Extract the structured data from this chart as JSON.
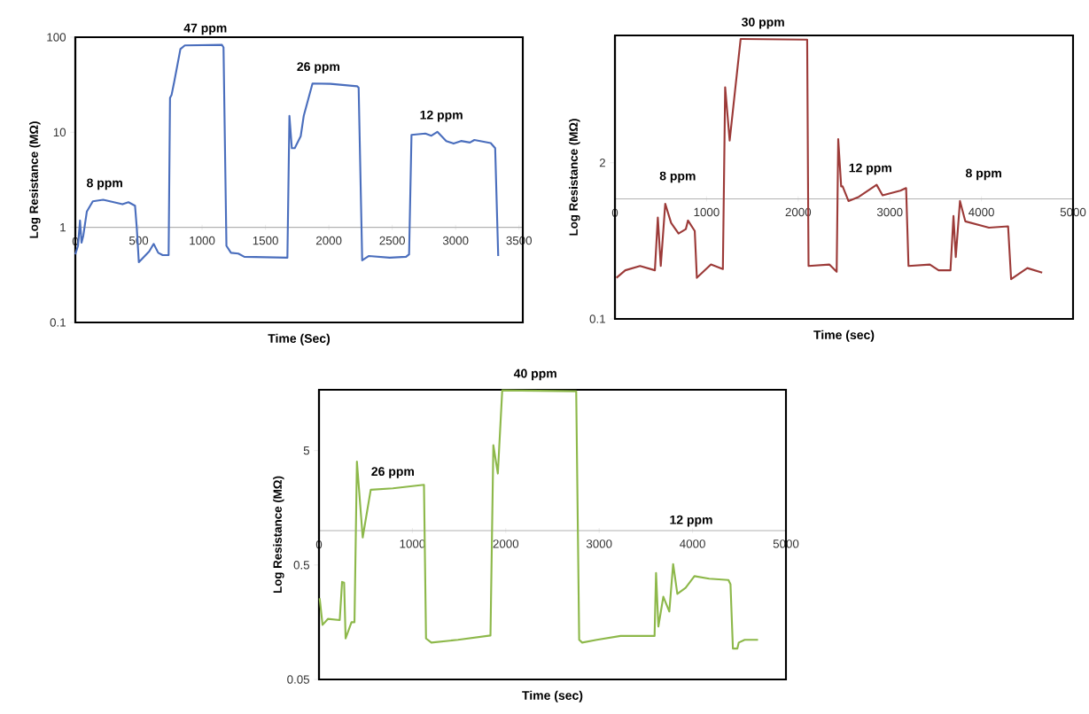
{
  "chart_data": [
    {
      "type": "line",
      "xlabel": "Time (Sec)",
      "ylabel": "Log Resistance (MΩ)",
      "log": "y",
      "color": "#4a6ebd",
      "xlim": [
        0,
        3530
      ],
      "ylim": [
        0.1,
        100
      ],
      "xticks": [
        0,
        500,
        1000,
        1500,
        2000,
        2500,
        3000,
        3500
      ],
      "yticks": [
        0.1,
        1,
        10,
        100
      ],
      "x": [
        0,
        21,
        37,
        49,
        63,
        91,
        138,
        220,
        372,
        419,
        471,
        485,
        501,
        548,
        583,
        618,
        654,
        689,
        736,
        747,
        759,
        782,
        829,
        864,
        1157,
        1169,
        1192,
        1228,
        1286,
        1333,
        1673,
        1689,
        1708,
        1731,
        1778,
        1802,
        1871,
        2012,
        2223,
        2235,
        2263,
        2316,
        2480,
        2609,
        2633,
        2652,
        2761,
        2809,
        2856,
        2926,
        2984,
        3043,
        3113,
        3148,
        3277,
        3312,
        3336
      ],
      "values": [
        0.52,
        0.64,
        1.18,
        0.69,
        0.82,
        1.47,
        1.88,
        1.95,
        1.75,
        1.84,
        1.69,
        0.98,
        0.43,
        0.5,
        0.56,
        0.67,
        0.54,
        0.51,
        0.51,
        23,
        24.6,
        35,
        75,
        82,
        83,
        78,
        0.64,
        0.54,
        0.53,
        0.49,
        0.48,
        14.9,
        6.8,
        6.8,
        9.1,
        14.9,
        32.6,
        32.3,
        30.5,
        29.4,
        0.45,
        0.5,
        0.48,
        0.49,
        0.52,
        9.4,
        9.7,
        9.2,
        10.1,
        8.1,
        7.6,
        8.1,
        7.8,
        8.3,
        7.7,
        6.8,
        0.5
      ],
      "annotations": [
        {
          "text": "8 ppm",
          "x": 232,
          "y": 1.95
        },
        {
          "text": "47 ppm",
          "x": 1026,
          "y": 83
        },
        {
          "text": "26 ppm",
          "x": 1918,
          "y": 32.6
        },
        {
          "text": "12 ppm",
          "x": 2888,
          "y": 10.1
        }
      ]
    },
    {
      "type": "line",
      "xlabel": "Time (sec)",
      "ylabel": "Log Resistance (MΩ)",
      "log": "y",
      "color": "#9c3a38",
      "xlim": [
        0,
        5000
      ],
      "ylim": [
        0.1,
        23
      ],
      "xticks": [
        0,
        1000,
        2000,
        3000,
        4000,
        5000
      ],
      "yticks": [
        0.1,
        2
      ],
      "x": [
        16,
        113,
        274,
        436,
        468,
        500,
        549,
        613,
        694,
        774,
        797,
        871,
        894,
        1048,
        1178,
        1203,
        1252,
        1372,
        1388,
        2098,
        2113,
        2340,
        2420,
        2437,
        2469,
        2485,
        2549,
        2662,
        2856,
        2921,
        3114,
        3178,
        3204,
        3437,
        3533,
        3662,
        3695,
        3720,
        3766,
        3824,
        4082,
        4291,
        4324,
        4501,
        4663
      ],
      "values": [
        0.22,
        0.254,
        0.276,
        0.254,
        0.7,
        0.276,
        0.91,
        0.63,
        0.515,
        0.56,
        0.66,
        0.54,
        0.22,
        0.284,
        0.26,
        8.5,
        3.06,
        21.5,
        21.5,
        21.2,
        0.276,
        0.284,
        0.247,
        3.15,
        1.27,
        1.27,
        0.96,
        1.04,
        1.31,
        1.07,
        1.17,
        1.23,
        0.276,
        0.284,
        0.254,
        0.254,
        0.72,
        0.328,
        0.96,
        0.65,
        0.576,
        0.59,
        0.214,
        0.265,
        0.243
      ],
      "annotations": [
        {
          "text": "30 ppm",
          "x": 1617,
          "y": 21.5
        },
        "8 ppm",
        {
          "text": "12 ppm",
          "x": 2788,
          "y": 1.31
        },
        "8 ppm"
      ]
    },
    {
      "type": "line",
      "xlabel": "Time (sec)",
      "ylabel": "Log Resistance (MΩ)",
      "log": "y",
      "color": "#8db84a",
      "xlim": [
        0,
        5000
      ],
      "ylim": [
        0.05,
        17
      ],
      "xticks": [
        0,
        1000,
        2000,
        3000,
        4000,
        5000
      ],
      "yticks": [
        0.05,
        0.5,
        5
      ],
      "x": [
        7,
        38,
        95,
        222,
        247,
        269,
        285,
        348,
        380,
        406,
        468,
        554,
        791,
        1124,
        1146,
        1203,
        1488,
        1836,
        1867,
        1915,
        1962,
        2754,
        2786,
        2818,
        2975,
        3229,
        3593,
        3609,
        3634,
        3687,
        3751,
        3792,
        3837,
        3925,
        4020,
        4178,
        4384,
        4406,
        4432,
        4479,
        4495,
        4558,
        4701
      ],
      "values": [
        0.256,
        0.15,
        0.169,
        0.165,
        0.356,
        0.35,
        0.114,
        0.158,
        0.158,
        4.0,
        0.87,
        2.27,
        2.34,
        2.51,
        0.114,
        0.105,
        0.111,
        0.121,
        5.57,
        3.15,
        16.8,
        16.5,
        0.111,
        0.105,
        0.111,
        0.12,
        0.12,
        0.426,
        0.145,
        0.264,
        0.196,
        0.51,
        0.28,
        0.316,
        0.4,
        0.38,
        0.37,
        0.34,
        0.093,
        0.093,
        0.105,
        0.111,
        0.111
      ],
      "annotations": [
        {
          "text": "26 ppm",
          "x": 791,
          "y": 2.34
        },
        {
          "text": "40 ppm",
          "x": 2317,
          "y": 16.8
        },
        "12 ppm"
      ]
    }
  ]
}
